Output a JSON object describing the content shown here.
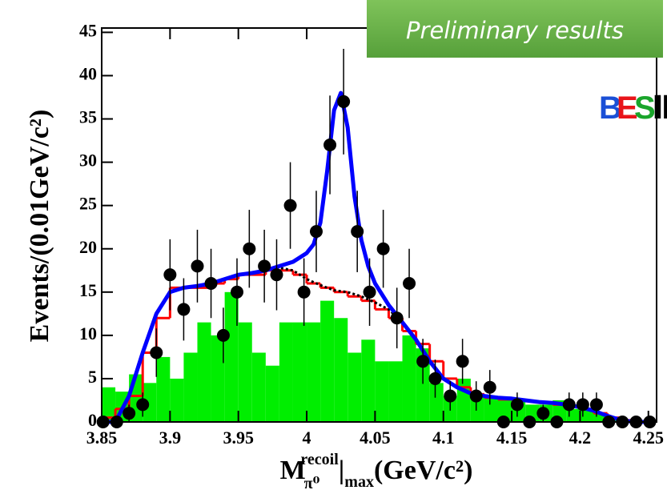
{
  "chart_data": {
    "type": "histogram",
    "xlim": [
      3.85,
      4.256
    ],
    "ylim": [
      0,
      45.5
    ],
    "xticks": [
      3.85,
      3.9,
      3.95,
      4,
      4.05,
      4.1,
      4.15,
      4.2,
      4.25
    ],
    "yticks": [
      0,
      5,
      10,
      15,
      20,
      25,
      30,
      35,
      40,
      45
    ],
    "y_label": "Events/(0.01GeV/c²)",
    "x_label": [
      "M",
      "π⁰",
      "recoil",
      "|",
      "max",
      "(GeV/c²)"
    ],
    "annotation": "Preliminary results",
    "logo": [
      {
        "text": "B",
        "color": "#1a4fd6"
      },
      {
        "text": "E",
        "color": "#e8141a"
      },
      {
        "text": "S",
        "color": "#1aa52b"
      },
      {
        "text": "Ⅲ",
        "color": "#000000"
      }
    ],
    "layers": [
      {
        "kind": "histogram",
        "color": "#00ee00",
        "fill": true,
        "bins": [
          3.85,
          3.86,
          3.87,
          3.88,
          3.89,
          3.9,
          3.91,
          3.92,
          3.93,
          3.94,
          3.95,
          3.96,
          3.97,
          3.98,
          3.99,
          4.0,
          4.01,
          4.02,
          4.03,
          4.04,
          4.05,
          4.06,
          4.07,
          4.08,
          4.09,
          4.1,
          4.11,
          4.12,
          4.13,
          4.14,
          4.15,
          4.16,
          4.17,
          4.18,
          4.19,
          4.2,
          4.21,
          4.22,
          4.23,
          4.24,
          4.25
        ],
        "values": [
          4,
          3.5,
          5.5,
          4.5,
          7.5,
          5,
          8,
          11.5,
          10,
          15,
          11.5,
          8,
          6.5,
          11.5,
          11.5,
          11.5,
          14,
          12,
          8,
          9.5,
          7,
          7,
          10,
          8.5,
          4.5,
          3,
          5,
          3,
          3,
          2.5,
          2.5,
          2,
          2,
          2.5,
          1.5,
          1.5,
          1,
          0.5,
          0,
          0
        ]
      },
      {
        "kind": "histogram",
        "color": "#ff0000",
        "fill": false,
        "bins": [
          3.85,
          3.86,
          3.87,
          3.88,
          3.89,
          3.9,
          3.91,
          3.92,
          3.93,
          3.94,
          3.95,
          3.96,
          3.97,
          3.98,
          3.99,
          4.0,
          4.01,
          4.02,
          4.03,
          4.04,
          4.05,
          4.06,
          4.07,
          4.08,
          4.09,
          4.1,
          4.11,
          4.12,
          4.13,
          4.14,
          4.15,
          4.16,
          4.17,
          4.18,
          4.19,
          4.2,
          4.21,
          4.22,
          4.23,
          4.24,
          4.25
        ],
        "values": [
          0.5,
          1.5,
          3,
          8,
          12,
          15.5,
          15.5,
          15.5,
          16,
          16.5,
          17,
          17,
          17.5,
          17.5,
          17,
          16,
          15.5,
          15,
          14.5,
          14,
          13,
          12,
          10.5,
          9,
          7,
          5,
          4,
          3.2,
          2.8,
          2.6,
          2.5,
          2.4,
          2.2,
          2,
          1.8,
          1.5,
          1,
          0.5,
          0.2,
          0
        ]
      },
      {
        "kind": "line",
        "color": "#000000",
        "dash": true,
        "x": [
          3.95,
          3.96,
          3.97,
          3.98,
          3.99,
          4.0,
          4.01,
          4.02,
          4.03,
          4.04,
          4.05,
          4.06,
          4.07,
          4.08
        ],
        "values": [
          17,
          17.2,
          17.5,
          17.8,
          17.5,
          16.5,
          15.8,
          15.2,
          15,
          14.5,
          13.8,
          13,
          11.5,
          9.5
        ]
      },
      {
        "kind": "line",
        "color": "#0000ff",
        "dash": false,
        "x": [
          3.85,
          3.86,
          3.87,
          3.88,
          3.89,
          3.9,
          3.91,
          3.92,
          3.93,
          3.94,
          3.95,
          3.96,
          3.97,
          3.98,
          3.99,
          4.0,
          4.005,
          4.01,
          4.015,
          4.02,
          4.025,
          4.03,
          4.035,
          4.04,
          4.045,
          4.05,
          4.06,
          4.07,
          4.08,
          4.09,
          4.1,
          4.11,
          4.12,
          4.13,
          4.14,
          4.15,
          4.16,
          4.17,
          4.18,
          4.19,
          4.2,
          4.21,
          4.22,
          4.23,
          4.24,
          4.25
        ],
        "values": [
          0,
          0,
          3,
          8,
          12.5,
          15,
          15.5,
          15.7,
          16,
          16.5,
          17,
          17.2,
          17.5,
          18,
          18.5,
          19.5,
          20.5,
          23,
          29,
          36,
          38,
          34,
          26,
          21,
          18,
          16,
          13.5,
          11.5,
          9.5,
          7,
          5,
          4,
          3.3,
          3,
          2.8,
          2.7,
          2.5,
          2.3,
          2.2,
          2,
          1.7,
          1.3,
          0.7,
          0.2,
          0,
          0
        ]
      },
      {
        "kind": "scatter",
        "color": "#000000",
        "x": [
          3.851,
          3.861,
          3.87,
          3.88,
          3.89,
          3.9,
          3.91,
          3.92,
          3.93,
          3.939,
          3.949,
          3.958,
          3.969,
          3.978,
          3.988,
          3.998,
          4.007,
          4.017,
          4.027,
          4.037,
          4.046,
          4.056,
          4.066,
          4.075,
          4.085,
          4.094,
          4.105,
          4.114,
          4.124,
          4.134,
          4.144,
          4.154,
          4.163,
          4.173,
          4.183,
          4.192,
          4.202,
          4.212,
          4.221,
          4.231,
          4.241,
          4.251
        ],
        "values": [
          0,
          0,
          1,
          2,
          8,
          17,
          13,
          18,
          16,
          10,
          15,
          20,
          18,
          17,
          25,
          15,
          22,
          32,
          37,
          22,
          15,
          20,
          12,
          16,
          7,
          5,
          3,
          7,
          3,
          4,
          0,
          2,
          0,
          1,
          0,
          2,
          2,
          2,
          0,
          0,
          0,
          0
        ],
        "errors": [
          0,
          0,
          1,
          1.4,
          2.8,
          4.1,
          3.6,
          4.2,
          4,
          3.2,
          3.9,
          4.5,
          4.2,
          4.1,
          5,
          3.9,
          4.7,
          5.7,
          6.1,
          4.7,
          3.9,
          4.5,
          3.5,
          4,
          2.6,
          2.2,
          1.7,
          2.6,
          1.7,
          2,
          0,
          1.4,
          0,
          1,
          0,
          1.4,
          1.4,
          1.4,
          0,
          0,
          0,
          0
        ]
      }
    ]
  }
}
